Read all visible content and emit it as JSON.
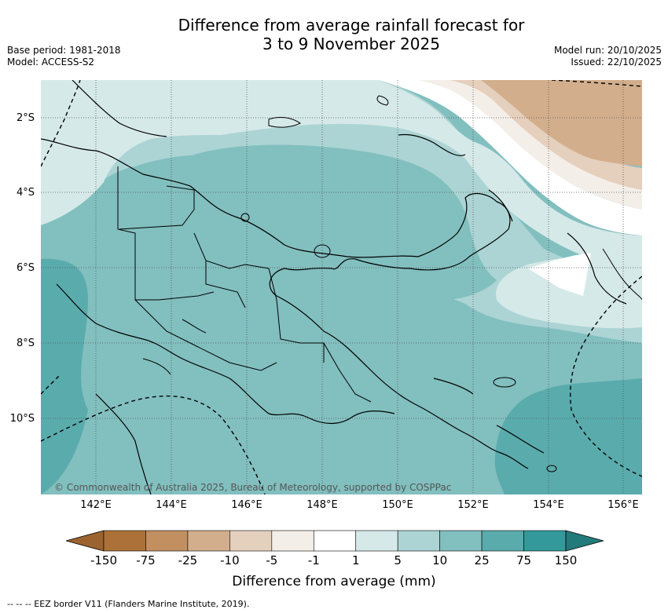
{
  "title_line1": "Difference from average rainfall forecast for",
  "title_line2": "3 to 9 November 2025",
  "meta_left": {
    "base_period": "Base period: 1981-2018",
    "model": "Model: ACCESS-S2"
  },
  "meta_right": {
    "model_run": "Model run: 20/10/2025",
    "issued": "Issued: 22/10/2025"
  },
  "latitude_labels": [
    "2°S",
    "4°S",
    "6°S",
    "8°S",
    "10°S"
  ],
  "longitude_labels": [
    "142°E",
    "144°E",
    "146°E",
    "148°E",
    "150°E",
    "152°E",
    "154°E",
    "156°E"
  ],
  "copyright": "© Commonwealth of Australia 2025, Bureau of Meteorology, supported by COSPPac",
  "colorbar": {
    "ticks": [
      "-150",
      "-75",
      "-25",
      "-10",
      "-5",
      "-1",
      "1",
      "5",
      "10",
      "25",
      "75",
      "150"
    ],
    "colors": [
      "#ab7138",
      "#c28f61",
      "#d2ae8c",
      "#e5cfbd",
      "#f3eee8",
      "#ffffff",
      "#d5e9e8",
      "#acd4d4",
      "#82bfbf",
      "#5aabac",
      "#33999a"
    ],
    "under_color": "#9a6330",
    "over_color": "#237a7a",
    "label": "Difference from average (mm)"
  },
  "footnote": "-- -- -- EEZ border V11 (Flanders Marine Institute, 2019)."
}
